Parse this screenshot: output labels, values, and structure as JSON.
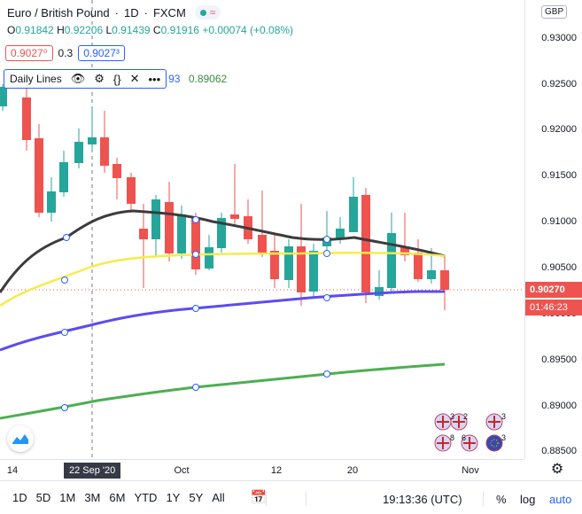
{
  "legend": {
    "symbol": "Euro / British Pound",
    "interval": "1D",
    "exchange": "FXCM",
    "market_status_icon": "market-open-dot-icon",
    "ohlc": {
      "o_key": "O",
      "o": "0.91842",
      "h_key": "H",
      "h": "0.92206",
      "l_key": "L",
      "l": "0.91439",
      "c_key": "C",
      "c": "0.91916",
      "change": "+0.00074 (+0.08%)"
    }
  },
  "trade": {
    "sell": "0.9027⁰",
    "spread": "0.3",
    "buy": "0.9027³"
  },
  "study": {
    "name": "Daily Lines",
    "value_blue": "93",
    "value_green": "0.89062"
  },
  "price_scale": {
    "currency": "GBP",
    "ticks": [
      "0.93000",
      "0.92500",
      "0.92000",
      "0.91500",
      "0.91000",
      "0.90500",
      "0.90000",
      "0.89500",
      "0.89000",
      "0.88500"
    ],
    "last_price": "0.90270",
    "countdown": "01:46:23"
  },
  "time_scale": {
    "ticks": [
      "14",
      "Oct",
      "12",
      "20",
      "Nov"
    ],
    "crosshair_date": "22 Sep '20"
  },
  "bottom_bar": {
    "timeframes": [
      "1D",
      "5D",
      "1M",
      "3M",
      "6M",
      "YTD",
      "1Y",
      "5Y",
      "All"
    ],
    "clock": "19:13:36 (UTC)",
    "percent": "%",
    "log": "log",
    "auto": "auto"
  },
  "colors": {
    "up": "#26a69a",
    "down": "#ef5350",
    "ma_black": "#3c3c3c",
    "ma_yellow": "#f5ec4a",
    "ma_blue": "#5b4cf0",
    "ma_green": "#4caf50",
    "accent": "#2962ff"
  },
  "event_badges": [
    {
      "flag": "uk",
      "count": "3"
    },
    {
      "flag": "uk",
      "count": "2"
    },
    {
      "flag": "uk",
      "count": "3"
    },
    {
      "flag": "uk",
      "count": "8"
    },
    {
      "flag": "uk",
      "count": "6"
    },
    {
      "flag": "eu",
      "count": "3"
    }
  ]
}
